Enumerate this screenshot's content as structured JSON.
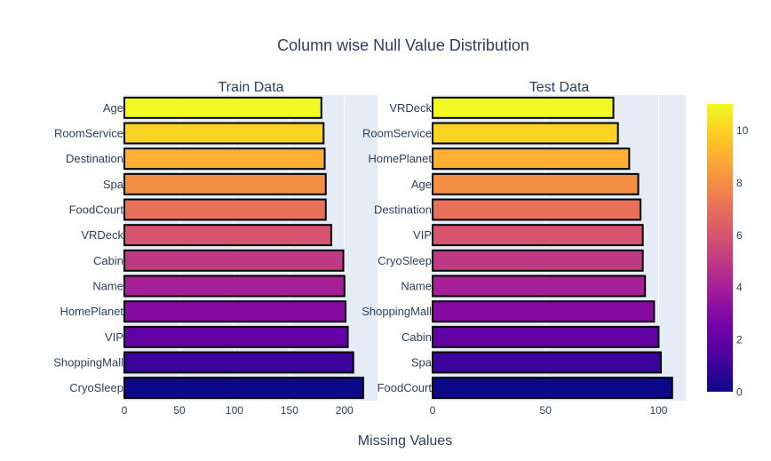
{
  "chart_data": {
    "type": "bar",
    "orientation": "horizontal",
    "title": "Column wise Null Value Distribution",
    "xlabel": "Missing Values",
    "plot_background": "#e5ecf6",
    "bar_outline": "#000000",
    "colorscale": [
      "#0d0887",
      "#46039f",
      "#7201a8",
      "#9c179e",
      "#bd3786",
      "#d8576b",
      "#ed7953",
      "#fb9f3a",
      "#fdca26",
      "#f0f921"
    ],
    "colorbar": {
      "min": 0,
      "max": 11,
      "ticks": [
        "0",
        "2",
        "4",
        "6",
        "8",
        "10"
      ],
      "tick_values": [
        0,
        2,
        4,
        6,
        8,
        10
      ]
    },
    "subplots": [
      {
        "name": "train",
        "title": "Train Data",
        "xlim": [
          0,
          230
        ],
        "xticks": [
          0,
          50,
          100,
          150,
          200
        ],
        "xtick_labels": [
          "0",
          "50",
          "100",
          "150",
          "200"
        ],
        "categories": [
          "Age",
          "RoomService",
          "Destination",
          "Spa",
          "FoodCourt",
          "VRDeck",
          "Cabin",
          "Name",
          "HomePlanet",
          "VIP",
          "ShoppingMall",
          "CryoSleep"
        ],
        "values": [
          179,
          181,
          182,
          183,
          183,
          188,
          199,
          200,
          201,
          203,
          208,
          217
        ],
        "color_values": [
          11,
          10,
          9,
          8,
          7,
          6,
          5,
          4,
          3,
          2,
          1,
          0
        ]
      },
      {
        "name": "test",
        "title": "Test Data",
        "xlim": [
          0,
          112
        ],
        "xticks": [
          0,
          50,
          100
        ],
        "xtick_labels": [
          "0",
          "50",
          "100"
        ],
        "categories": [
          "VRDeck",
          "RoomService",
          "HomePlanet",
          "Age",
          "Destination",
          "VIP",
          "CryoSleep",
          "Name",
          "ShoppingMall",
          "Cabin",
          "Spa",
          "FoodCourt"
        ],
        "values": [
          80,
          82,
          87,
          91,
          92,
          93,
          93,
          94,
          98,
          100,
          101,
          106
        ],
        "color_values": [
          11,
          10,
          9,
          8,
          7,
          6,
          5,
          4,
          3,
          2,
          1,
          0
        ]
      }
    ]
  }
}
